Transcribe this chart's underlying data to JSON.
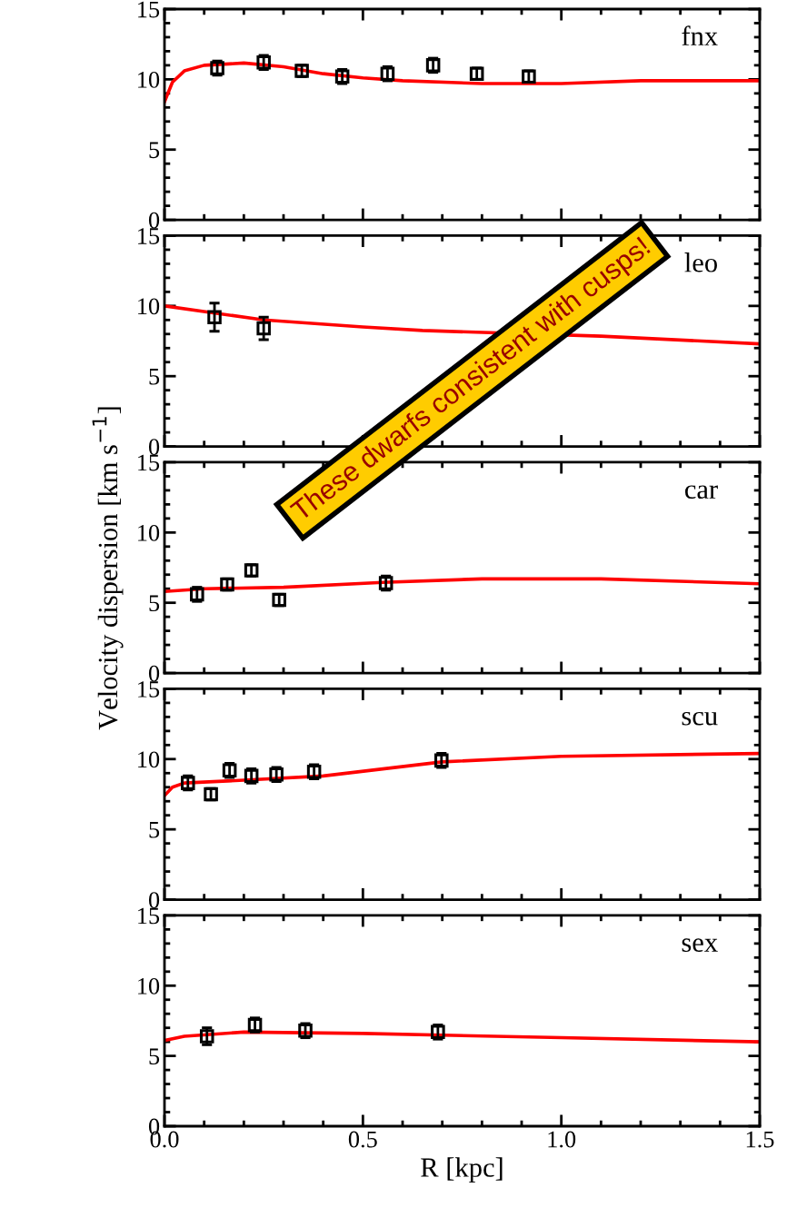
{
  "chart_data": [
    {
      "type": "scatter",
      "title": "fnx",
      "xlim": [
        0,
        1.5
      ],
      "ylim": [
        0,
        15
      ],
      "xticks": [
        0,
        0.5,
        1,
        1.5
      ],
      "yticks": [
        0,
        5,
        10,
        15
      ],
      "tick_labels": "y",
      "series": [
        {
          "type": "line",
          "color": "#ff0000",
          "x": [
            0,
            0.02,
            0.05,
            0.1,
            0.2,
            0.3,
            0.4,
            0.5,
            0.6,
            0.8,
            1.0,
            1.2,
            1.5
          ],
          "values": [
            8.4,
            9.8,
            10.6,
            11.0,
            11.16,
            10.9,
            10.4,
            10.1,
            9.9,
            9.7,
            9.7,
            9.9,
            9.9
          ]
        },
        {
          "color": "#000000",
          "marker": "square",
          "x": [
            0.133,
            0.25,
            0.346,
            0.448,
            0.562,
            0.677,
            0.787,
            0.918
          ],
          "values": [
            10.8,
            11.2,
            10.6,
            10.2,
            10.4,
            11.0,
            10.4,
            10.2
          ],
          "errors": [
            0.5,
            0.5,
            0.4,
            0.5,
            0.5,
            0.5,
            0.4,
            0.4
          ]
        }
      ]
    },
    {
      "type": "scatter",
      "title": "leo",
      "xlim": [
        0,
        1.5
      ],
      "ylim": [
        0,
        15
      ],
      "xticks": [
        0,
        0.5,
        1,
        1.5
      ],
      "yticks": [
        0,
        5,
        10,
        15
      ],
      "tick_labels": "y",
      "annotations": [
        "These dwarfs consistent with cusps!"
      ],
      "series": [
        {
          "type": "line",
          "color": "#ff0000",
          "x": [
            0,
            0.25,
            0.5,
            0.65,
            1.1,
            1.5
          ],
          "values": [
            10.0,
            9.0,
            8.5,
            8.25,
            7.85,
            7.3
          ]
        },
        {
          "color": "#000000",
          "marker": "square",
          "x": [
            0.126,
            0.25
          ],
          "values": [
            9.2,
            8.4
          ],
          "errors": [
            1.0,
            0.8
          ]
        }
      ]
    },
    {
      "type": "scatter",
      "title": "car",
      "ylabel": "Velocity dispersion [km s$^{−1}$]",
      "xlim": [
        0,
        1.5
      ],
      "ylim": [
        0,
        15
      ],
      "xticks": [
        0,
        0.5,
        1,
        1.5
      ],
      "yticks": [
        0,
        5,
        10,
        15
      ],
      "tick_labels": "y",
      "series": [
        {
          "type": "line",
          "color": "#ff0000",
          "x": [
            0,
            0.1,
            0.3,
            0.55,
            0.8,
            1.1,
            1.5
          ],
          "values": [
            5.8,
            6.0,
            6.1,
            6.45,
            6.7,
            6.7,
            6.35
          ]
        },
        {
          "color": "#000000",
          "marker": "square",
          "x": [
            0.082,
            0.158,
            0.219,
            0.289,
            0.558
          ],
          "values": [
            5.6,
            6.3,
            7.3,
            5.2,
            6.4
          ],
          "errors": [
            0.5,
            0.4,
            0.4,
            0.4,
            0.5
          ]
        }
      ]
    },
    {
      "type": "scatter",
      "title": "scu",
      "xlim": [
        0,
        1.5
      ],
      "ylim": [
        0,
        15
      ],
      "xticks": [
        0,
        0.5,
        1,
        1.5
      ],
      "yticks": [
        0,
        5,
        10,
        15
      ],
      "tick_labels": "y",
      "series": [
        {
          "type": "line",
          "color": "#ff0000",
          "x": [
            0,
            0.02,
            0.05,
            0.2,
            0.4,
            0.7,
            1.0,
            1.5
          ],
          "values": [
            7.4,
            8.0,
            8.3,
            8.5,
            8.8,
            9.8,
            10.2,
            10.4
          ]
        },
        {
          "color": "#000000",
          "marker": "square",
          "x": [
            0.059,
            0.117,
            0.164,
            0.219,
            0.282,
            0.377,
            0.698
          ],
          "values": [
            8.3,
            7.5,
            9.2,
            8.8,
            8.9,
            9.1,
            9.9
          ],
          "errors": [
            0.5,
            0.4,
            0.5,
            0.5,
            0.5,
            0.5,
            0.5
          ]
        }
      ]
    },
    {
      "type": "scatter",
      "title": "sex",
      "xlabel": "R [kpc]",
      "xlim": [
        0,
        1.5
      ],
      "ylim": [
        0,
        15
      ],
      "xticks": [
        {
          "value": 0,
          "label": "0.0"
        },
        {
          "value": 0.5,
          "label": "0.5"
        },
        {
          "value": 1.0,
          "label": "1.0"
        },
        {
          "value": 1.5,
          "label": "1.5"
        }
      ],
      "yticks": [
        0,
        5,
        10,
        15
      ],
      "series": [
        {
          "type": "line",
          "color": "#ff0000",
          "x": [
            0,
            0.05,
            0.2,
            0.5,
            1.0,
            1.5
          ],
          "values": [
            6.1,
            6.4,
            6.7,
            6.6,
            6.3,
            6.0
          ]
        },
        {
          "color": "#000000",
          "marker": "square",
          "x": [
            0.107,
            0.228,
            0.355,
            0.689
          ],
          "values": [
            6.4,
            7.2,
            6.8,
            6.7
          ],
          "errors": [
            0.6,
            0.5,
            0.5,
            0.5
          ]
        }
      ]
    }
  ]
}
